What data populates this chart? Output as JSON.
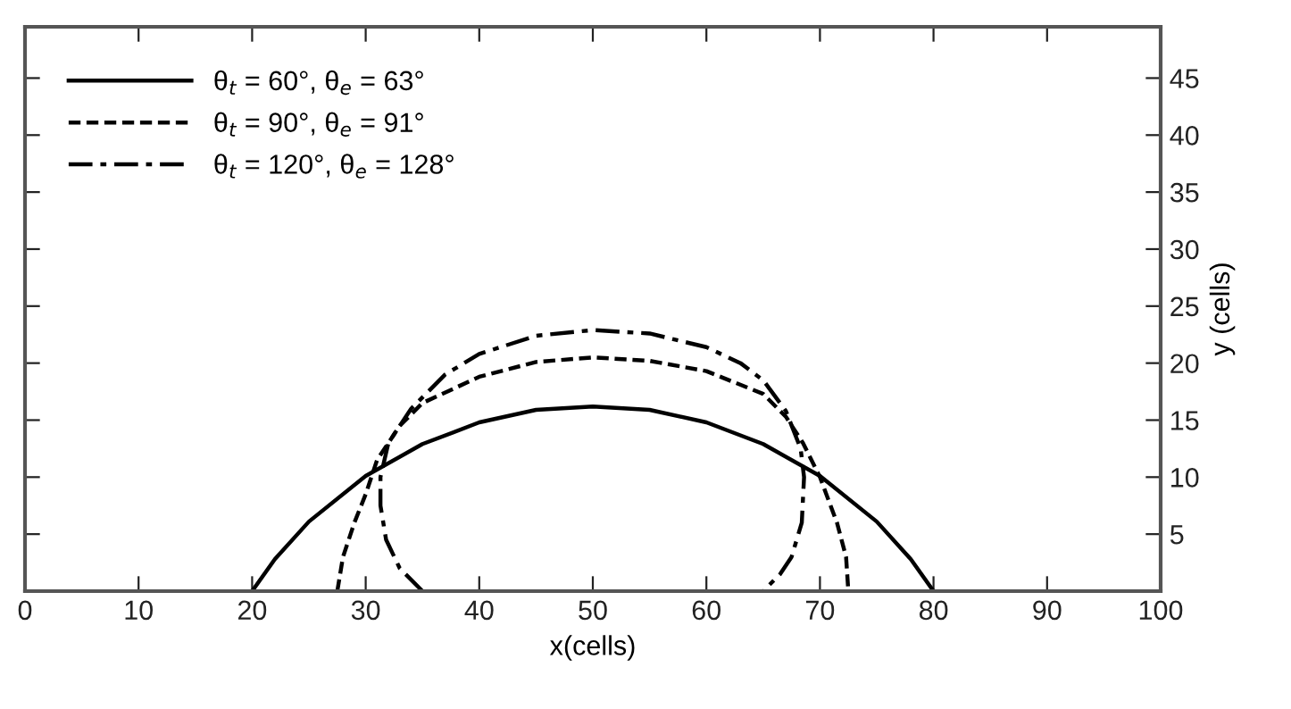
{
  "chart_data": {
    "type": "line",
    "xlabel": "x(cells)",
    "ylabel": "y (cells)",
    "xlim": [
      0,
      100
    ],
    "xticks": [
      0,
      10,
      20,
      30,
      40,
      50,
      60,
      70,
      80,
      90,
      100
    ],
    "ylim": [
      0,
      49.5
    ],
    "yticks": [
      5,
      10,
      15,
      20,
      25,
      30,
      35,
      40,
      45
    ],
    "grid": false,
    "legend": "top left",
    "marker": "none",
    "series": [
      {
        "name": "θ$_{t}$ = 60°, θ$_{e}$ = 63°",
        "color": "#000000",
        "line_style": "solid",
        "x": [
          20,
          22,
          25,
          30,
          35,
          40,
          45,
          50,
          55,
          60,
          65,
          70,
          75,
          78,
          80
        ],
        "values": [
          0,
          2.8,
          6.1,
          10.1,
          12.9,
          14.8,
          15.9,
          16.2,
          15.9,
          14.8,
          12.9,
          10.1,
          6.1,
          2.8,
          0
        ]
      },
      {
        "name": "θ$_{t}$ = 90°, θ$_{e}$ = 91°",
        "color": "#000000",
        "line_style": "dashed",
        "x": [
          27.5,
          28,
          29,
          30,
          31,
          33,
          35,
          40,
          45,
          50,
          55,
          60,
          65,
          67,
          68.5,
          70,
          71.5,
          72.3,
          72.5
        ],
        "values": [
          0,
          3,
          6,
          8.5,
          11.5,
          14.5,
          16.5,
          18.8,
          20.1,
          20.5,
          20.2,
          19.3,
          17.3,
          15.3,
          13,
          10,
          6,
          3,
          0
        ]
      },
      {
        "name": "θ$_{t}$ = 120°, θ$_{e}$ = 128°",
        "color": "#000000",
        "line_style": "dashdot",
        "x": [
          35,
          33,
          31.8,
          31.3,
          31.3,
          32,
          34,
          37,
          40,
          45,
          50,
          55,
          60,
          63,
          65,
          67,
          68.3,
          68.6,
          68.4,
          67.5,
          66.5,
          65
        ],
        "values": [
          0,
          2,
          4.5,
          7.5,
          10,
          13,
          16,
          19,
          20.8,
          22.4,
          22.9,
          22.6,
          21.4,
          20,
          18.5,
          15.8,
          12.5,
          10,
          6,
          3,
          1.5,
          0
        ]
      }
    ]
  }
}
